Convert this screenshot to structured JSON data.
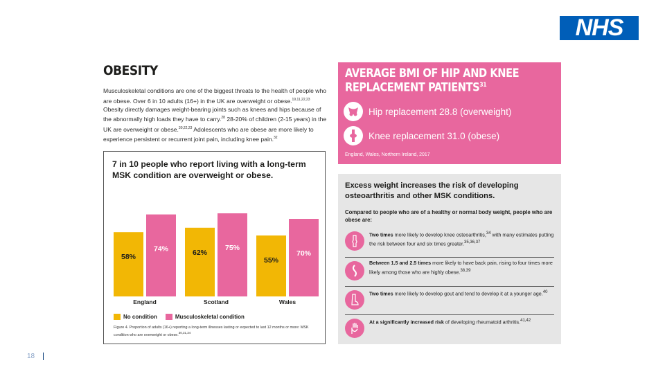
{
  "logo": {
    "text": "NHS",
    "color": "#005eb8"
  },
  "obesity": {
    "title": "OBESITY",
    "intro_parts": [
      "Musculoskeletal conditions are one of the biggest threats to the health of people who are obese. Over 6 in 10 adults (16+) in the UK are overweight or obese.",
      "19,11,22,23",
      " Obesity directly damages weight-bearing joints such as knees and hips because of the abnormally high loads they have to carry.",
      "28",
      " 28-20% of children (2-15 years) in the UK are overweight or obese.",
      "30,22,23",
      " Adolescents who are obese are more likely to experience persistent or recurrent joint pain, including knee pain.",
      "32"
    ]
  },
  "chart": {
    "heading": "7 in 10 people who report living with a long-term MSK condition are overweight or obese.",
    "legend": {
      "no_condition": "No condition",
      "msk": "Musculoskeletal condition"
    },
    "caption": "Figure 4. Proportion of adults (16+) reporting a long-term illnesses lasting or expected to last 12 months or more: MSK condition who are overweight or obese.",
    "caption_sup": "30,31,34"
  },
  "chart_data": {
    "type": "bar",
    "title": "7 in 10 people who report living with a long-term MSK condition are overweight or obese.",
    "categories": [
      "England",
      "Scotland",
      "Wales"
    ],
    "series": [
      {
        "name": "No condition",
        "values": [
          58,
          62,
          55
        ],
        "color": "#f2b705"
      },
      {
        "name": "Musculoskeletal condition",
        "values": [
          74,
          75,
          70
        ],
        "color": "#e8679e"
      }
    ],
    "value_suffix": "%",
    "ylim": [
      0,
      100
    ],
    "xlabel": "",
    "ylabel": "",
    "grid": false,
    "legend": "bottom-left"
  },
  "bmi": {
    "title_line1": "AVERAGE BMI OF HIP AND KNEE",
    "title_line2": "REPLACEMENT PATIENTS",
    "title_sup": "31",
    "hip": "Hip replacement 28.8 (overweight)",
    "knee": "Knee replacement 31.0 (obese)",
    "note": "England, Wales, Northern Ireland, 2017",
    "bg_color": "#e8679e"
  },
  "risk": {
    "title": "Excess weight increases the risk of developing osteoarthritis and other MSK conditions.",
    "subtitle": "Compared to people who are of a healthy or normal body weight, people who are obese are:",
    "items": [
      {
        "bold": "Two times",
        "text": " more likely to develop knee osteoarthritis,",
        "sup1": "34",
        "text2": " with many estimates putting the risk between four and six times greater.",
        "sup2": "35,36,37"
      },
      {
        "bold": "Between 1.5 and 2.5 times",
        "text": " more likely to have back pain, rising to four times more likely among those who are highly obese.",
        "sup1": "38,39",
        "text2": "",
        "sup2": ""
      },
      {
        "bold": "Two times",
        "text": " more likely to develop gout and tend to develop it at a younger age.",
        "sup1": "40",
        "text2": "",
        "sup2": ""
      },
      {
        "bold": "At a significantly increased risk",
        "text": " of developing rheumatoid arthritis.",
        "sup1": "41,42",
        "text2": "",
        "sup2": ""
      }
    ]
  },
  "footer": {
    "page_number": "18"
  }
}
